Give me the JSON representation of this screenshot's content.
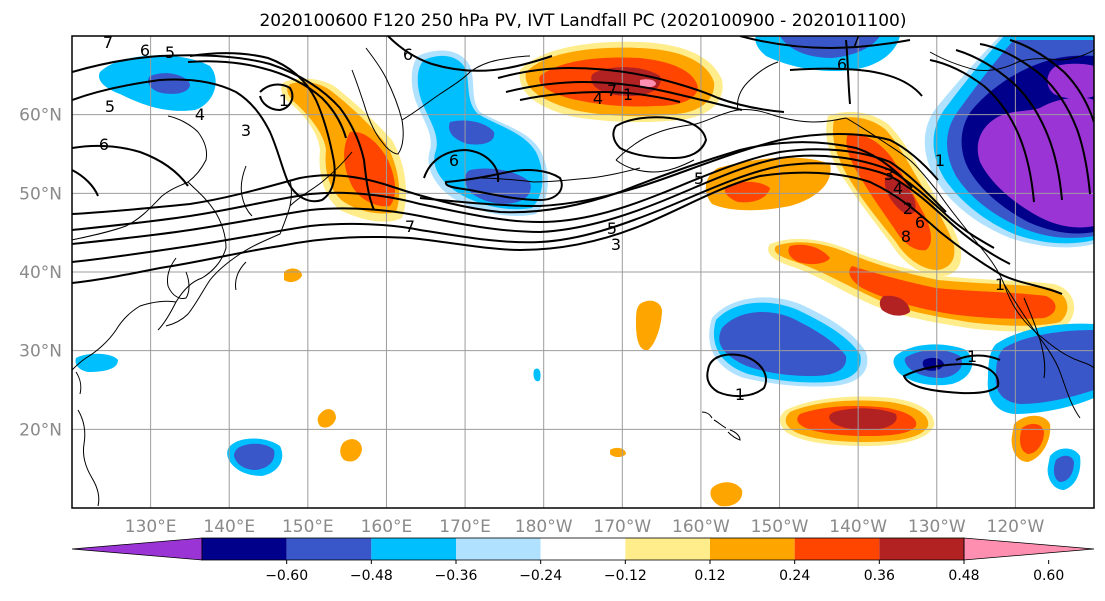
{
  "title": "2020100600 F120 250 hPa PV, IVT Landfall PC (2020100900 - 2020101100)",
  "map": {
    "lat_range": [
      10,
      70
    ],
    "lon_range_east": [
      120,
      250
    ],
    "lat_ticks": [
      {
        "lat": 60,
        "label": "60°N"
      },
      {
        "lat": 50,
        "label": "50°N"
      },
      {
        "lat": 40,
        "label": "40°N"
      },
      {
        "lat": 30,
        "label": "30°N"
      },
      {
        "lat": 20,
        "label": "20°N"
      }
    ],
    "lon_ticks": [
      {
        "lon": 130,
        "label": "130°E"
      },
      {
        "lon": 140,
        "label": "140°E"
      },
      {
        "lon": 150,
        "label": "150°E"
      },
      {
        "lon": 160,
        "label": "160°E"
      },
      {
        "lon": 170,
        "label": "170°E"
      },
      {
        "lon": 180,
        "label": "180°W"
      },
      {
        "lon": 190,
        "label": "170°W"
      },
      {
        "lon": 200,
        "label": "160°W"
      },
      {
        "lon": 210,
        "label": "150°W"
      },
      {
        "lon": 220,
        "label": "140°W"
      },
      {
        "lon": 230,
        "label": "130°W"
      },
      {
        "lon": 240,
        "label": "120°W"
      }
    ]
  },
  "colorbar": {
    "colors": [
      "#9b34d4",
      "#00008b",
      "#3a57c9",
      "#00bfff",
      "#b0e2ff",
      "#ffffff",
      "#ffec8b",
      "#ffa500",
      "#ff4500",
      "#b22222",
      "#ff8fb0"
    ],
    "levels": [
      -0.6,
      -0.48,
      -0.36,
      -0.24,
      -0.12,
      0.12,
      0.24,
      0.36,
      0.48,
      0.6
    ],
    "tick_labels": [
      "−0.60",
      "−0.48",
      "−0.36",
      "−0.24",
      "−0.12",
      "0.12",
      "0.24",
      "0.36",
      "0.48",
      "0.60"
    ]
  },
  "contour_labels": [
    "7",
    "6",
    "5",
    "6",
    "5",
    "6",
    "4",
    "3",
    "1",
    "6",
    "7",
    "6",
    "7",
    "1",
    "4",
    "5",
    "3",
    "4",
    "2",
    "6",
    "8",
    "7",
    "5",
    "3",
    "1",
    "1",
    "1",
    "1"
  ]
}
